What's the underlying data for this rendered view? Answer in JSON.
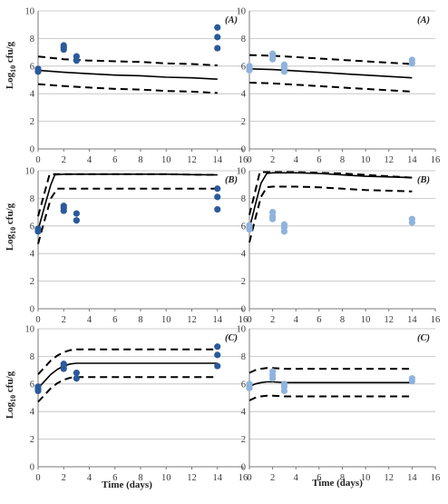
{
  "figure": {
    "ylabel": "Log10 cfu/g",
    "xlabel": "Time (days)"
  },
  "colors": {
    "dark_points": "#2b5a9b",
    "light_points": "#8fb3dd",
    "line": "#000000",
    "grid": "#bdbdbd"
  },
  "chart_data": [
    {
      "type": "scatter",
      "panel_label": "(A)",
      "xlim": [
        0,
        16
      ],
      "ylim": [
        0,
        10
      ],
      "x_ticks": [
        "0",
        "2",
        "4",
        "6",
        "8",
        "10",
        "12",
        "14",
        "16"
      ],
      "y_ticks": [
        "0",
        "2",
        "4",
        "6",
        "8",
        "10"
      ],
      "grid": "horizontal",
      "point_color": "#2b5a9b",
      "observed": {
        "x": [
          0,
          0,
          0,
          2,
          2,
          2,
          3,
          3,
          14,
          14,
          14
        ],
        "y": [
          5.6,
          5.7,
          5.8,
          7.2,
          7.35,
          7.5,
          6.4,
          6.7,
          7.3,
          8.1,
          8.8
        ]
      },
      "predicted": {
        "x": [
          0,
          2,
          4,
          6,
          8,
          10,
          12,
          14
        ],
        "y": [
          5.7,
          5.55,
          5.45,
          5.35,
          5.3,
          5.2,
          5.15,
          5.05
        ]
      },
      "upper": {
        "x": [
          0,
          2,
          4,
          6,
          8,
          10,
          12,
          14
        ],
        "y": [
          6.7,
          6.5,
          6.4,
          6.35,
          6.3,
          6.2,
          6.15,
          6.05
        ]
      },
      "lower": {
        "x": [
          0,
          2,
          4,
          6,
          8,
          10,
          12,
          14
        ],
        "y": [
          4.7,
          4.55,
          4.45,
          4.35,
          4.3,
          4.2,
          4.15,
          4.05
        ]
      }
    },
    {
      "type": "scatter",
      "panel_label": "(A)",
      "xlim": [
        0,
        16
      ],
      "ylim": [
        0,
        10
      ],
      "x_ticks": [
        "0",
        "2",
        "4",
        "6",
        "8",
        "10",
        "12",
        "14",
        "16"
      ],
      "y_ticks": [
        "0",
        "2",
        "4",
        "6",
        "8",
        "10"
      ],
      "grid": "horizontal",
      "point_color": "#8fb3dd",
      "observed": {
        "x": [
          0,
          0,
          0,
          2,
          2,
          2,
          3,
          3,
          3,
          14,
          14
        ],
        "y": [
          5.7,
          5.85,
          6.0,
          6.5,
          6.7,
          6.9,
          5.6,
          5.9,
          6.1,
          6.2,
          6.45
        ]
      },
      "predicted": {
        "x": [
          0,
          2,
          4,
          6,
          8,
          10,
          12,
          14
        ],
        "y": [
          5.8,
          5.75,
          5.65,
          5.55,
          5.45,
          5.35,
          5.25,
          5.15
        ]
      },
      "upper": {
        "x": [
          0,
          2,
          4,
          6,
          8,
          10,
          12,
          14
        ],
        "y": [
          6.8,
          6.75,
          6.65,
          6.55,
          6.45,
          6.35,
          6.25,
          6.15
        ]
      },
      "lower": {
        "x": [
          0,
          2,
          4,
          6,
          8,
          10,
          12,
          14
        ],
        "y": [
          4.8,
          4.75,
          4.65,
          4.55,
          4.45,
          4.35,
          4.25,
          4.15
        ]
      }
    },
    {
      "type": "scatter",
      "panel_label": "(B)",
      "xlim": [
        0,
        16
      ],
      "ylim": [
        0,
        10
      ],
      "x_ticks": [
        "0",
        "2",
        "4",
        "6",
        "8",
        "10",
        "12",
        "14",
        "16"
      ],
      "y_ticks": [
        "0",
        "2",
        "4",
        "6",
        "8",
        "10"
      ],
      "grid": "horizontal",
      "point_color": "#2b5a9b",
      "observed": {
        "x": [
          0,
          0,
          0,
          2,
          2,
          2,
          3,
          3,
          14,
          14,
          14
        ],
        "y": [
          5.6,
          5.7,
          5.8,
          7.1,
          7.3,
          7.45,
          6.4,
          6.9,
          7.2,
          8.1,
          8.7
        ]
      },
      "predicted": {
        "x": [
          0,
          0.5,
          1,
          1.3,
          2,
          4,
          6,
          8,
          10,
          12,
          14
        ],
        "y": [
          5.7,
          7.4,
          9.0,
          9.7,
          9.75,
          9.75,
          9.75,
          9.75,
          9.75,
          9.72,
          9.7
        ]
      },
      "upper": {
        "x": [
          0,
          0.5,
          0.9,
          2,
          4,
          6,
          8,
          10,
          12,
          14
        ],
        "y": [
          6.7,
          8.4,
          9.75,
          9.75,
          9.75,
          9.75,
          9.75,
          9.75,
          9.72,
          9.7
        ]
      },
      "lower": {
        "x": [
          0,
          0.5,
          1,
          1.5,
          2,
          4,
          6,
          8,
          10,
          12,
          14
        ],
        "y": [
          4.7,
          6.4,
          8.0,
          8.7,
          8.7,
          8.7,
          8.7,
          8.7,
          8.7,
          8.7,
          8.7
        ]
      }
    },
    {
      "type": "scatter",
      "panel_label": "(B)",
      "xlim": [
        0,
        16
      ],
      "ylim": [
        0,
        10
      ],
      "x_ticks": [
        "0",
        "2",
        "4",
        "6",
        "8",
        "10",
        "12",
        "14",
        "16"
      ],
      "y_ticks": [
        "0",
        "2",
        "4",
        "6",
        "8",
        "10"
      ],
      "grid": "horizontal",
      "point_color": "#8fb3dd",
      "observed": {
        "x": [
          0,
          0,
          0,
          2,
          2,
          2,
          3,
          3,
          3,
          14,
          14
        ],
        "y": [
          5.75,
          5.9,
          6.05,
          6.5,
          6.7,
          7.0,
          5.6,
          5.9,
          6.1,
          6.25,
          6.5
        ]
      },
      "predicted": {
        "x": [
          0,
          0.5,
          1,
          1.5,
          2,
          4,
          6,
          8,
          10,
          12,
          14
        ],
        "y": [
          5.8,
          7.5,
          9.1,
          9.8,
          9.85,
          9.85,
          9.8,
          9.7,
          9.6,
          9.55,
          9.5
        ]
      },
      "upper": {
        "x": [
          0,
          0.5,
          0.9,
          2,
          4,
          6,
          8,
          10,
          12,
          14
        ],
        "y": [
          6.8,
          8.5,
          9.9,
          9.9,
          9.9,
          9.85,
          9.8,
          9.7,
          9.6,
          9.5
        ]
      },
      "lower": {
        "x": [
          0,
          0.5,
          1,
          1.5,
          2,
          4,
          6,
          8,
          10,
          12,
          14
        ],
        "y": [
          4.8,
          6.5,
          8.1,
          8.8,
          8.85,
          8.85,
          8.8,
          8.7,
          8.6,
          8.55,
          8.5
        ]
      }
    },
    {
      "type": "scatter",
      "panel_label": "(C)",
      "xlim": [
        0,
        16
      ],
      "ylim": [
        0,
        10
      ],
      "x_ticks": [
        "0",
        "2",
        "4",
        "6",
        "8",
        "10",
        "12",
        "14",
        "16"
      ],
      "y_ticks": [
        "0",
        "2",
        "4",
        "6",
        "8",
        "10"
      ],
      "grid": "horizontal",
      "point_color": "#2b5a9b",
      "observed": {
        "x": [
          0,
          0,
          0,
          2,
          2,
          2,
          3,
          3,
          14,
          14,
          14
        ],
        "y": [
          5.5,
          5.65,
          5.8,
          7.1,
          7.3,
          7.45,
          6.4,
          6.8,
          7.3,
          8.1,
          8.7
        ]
      },
      "predicted": {
        "x": [
          0,
          0.5,
          1,
          1.5,
          2,
          2.5,
          3,
          4,
          6,
          8,
          10,
          12,
          14
        ],
        "y": [
          5.7,
          6.2,
          6.7,
          7.05,
          7.3,
          7.45,
          7.5,
          7.5,
          7.5,
          7.5,
          7.5,
          7.5,
          7.5
        ]
      },
      "upper": {
        "x": [
          0,
          0.5,
          1,
          1.5,
          2,
          2.5,
          3,
          4,
          6,
          8,
          10,
          12,
          14
        ],
        "y": [
          6.7,
          7.2,
          7.7,
          8.05,
          8.3,
          8.45,
          8.5,
          8.5,
          8.5,
          8.5,
          8.5,
          8.5,
          8.5
        ]
      },
      "lower": {
        "x": [
          0,
          0.5,
          1,
          1.5,
          2,
          2.5,
          3,
          4,
          6,
          8,
          10,
          12,
          14
        ],
        "y": [
          4.7,
          5.2,
          5.7,
          6.05,
          6.3,
          6.45,
          6.5,
          6.5,
          6.5,
          6.5,
          6.5,
          6.5,
          6.5
        ]
      }
    },
    {
      "type": "scatter",
      "panel_label": "(C)",
      "xlim": [
        0,
        16
      ],
      "ylim": [
        0,
        10
      ],
      "x_ticks": [
        "0",
        "2",
        "4",
        "6",
        "8",
        "10",
        "12",
        "14",
        "16"
      ],
      "y_ticks": [
        "0",
        "2",
        "4",
        "6",
        "8",
        "10"
      ],
      "grid": "horizontal",
      "point_color": "#8fb3dd",
      "observed": {
        "x": [
          0,
          0,
          0,
          2,
          2,
          2,
          3,
          3,
          3,
          14,
          14
        ],
        "y": [
          5.7,
          5.85,
          6.0,
          6.4,
          6.65,
          6.9,
          5.5,
          5.8,
          6.0,
          6.2,
          6.4
        ]
      },
      "predicted": {
        "x": [
          0,
          0.5,
          1,
          1.5,
          2,
          3,
          4,
          6,
          8,
          10,
          12,
          14
        ],
        "y": [
          5.8,
          6.0,
          6.1,
          6.15,
          6.15,
          6.1,
          6.1,
          6.1,
          6.1,
          6.1,
          6.1,
          6.1
        ]
      },
      "upper": {
        "x": [
          0,
          0.5,
          1,
          1.5,
          2,
          3,
          4,
          6,
          8,
          10,
          12,
          14
        ],
        "y": [
          6.8,
          7.0,
          7.1,
          7.15,
          7.15,
          7.1,
          7.1,
          7.1,
          7.1,
          7.1,
          7.1,
          7.1
        ]
      },
      "lower": {
        "x": [
          0,
          0.5,
          1,
          1.5,
          2,
          3,
          4,
          6,
          8,
          10,
          12,
          14
        ],
        "y": [
          4.8,
          5.0,
          5.1,
          5.15,
          5.15,
          5.1,
          5.1,
          5.1,
          5.1,
          5.1,
          5.1,
          5.1
        ]
      }
    }
  ]
}
